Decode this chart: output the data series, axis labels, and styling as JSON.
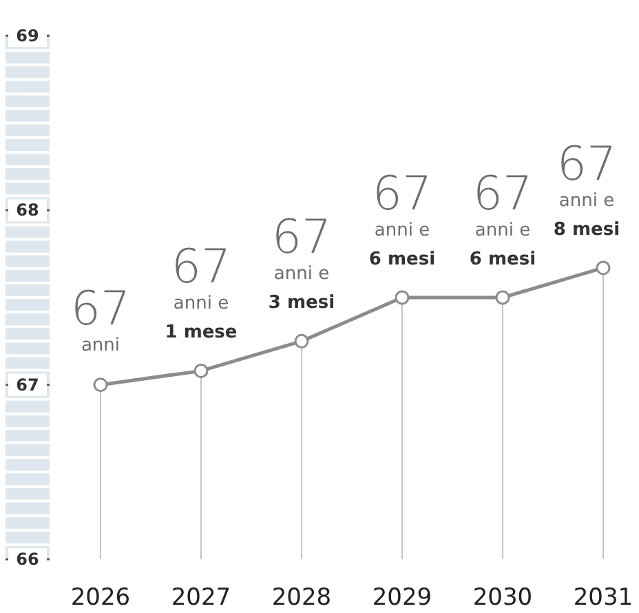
{
  "chart_data": {
    "type": "lollipop",
    "categories": [
      "2026",
      "2027",
      "2028",
      "2029",
      "2030",
      "2031"
    ],
    "series": [
      {
        "type": "line",
        "color": "#8c8c8c",
        "marker": "none",
        "values": [
          67,
          67.08,
          67.25,
          67.5,
          67.5,
          67.67
        ]
      },
      {
        "color": "#8c8c8c",
        "values": [
          67,
          67.08,
          67.25,
          67.5,
          67.5,
          67.67
        ],
        "value_labels": [
          "67 anni",
          "67 anni e 1 mese",
          "67 anni e 3 mesi",
          "67 anni e 6 mesi",
          "67 anni e 6 mesi",
          "67 anni e 8 mesi"
        ]
      }
    ],
    "ylim": [
      66,
      69
    ],
    "yticks": [
      66,
      67,
      68,
      69
    ],
    "marker": "circle",
    "grid": false
  }
}
